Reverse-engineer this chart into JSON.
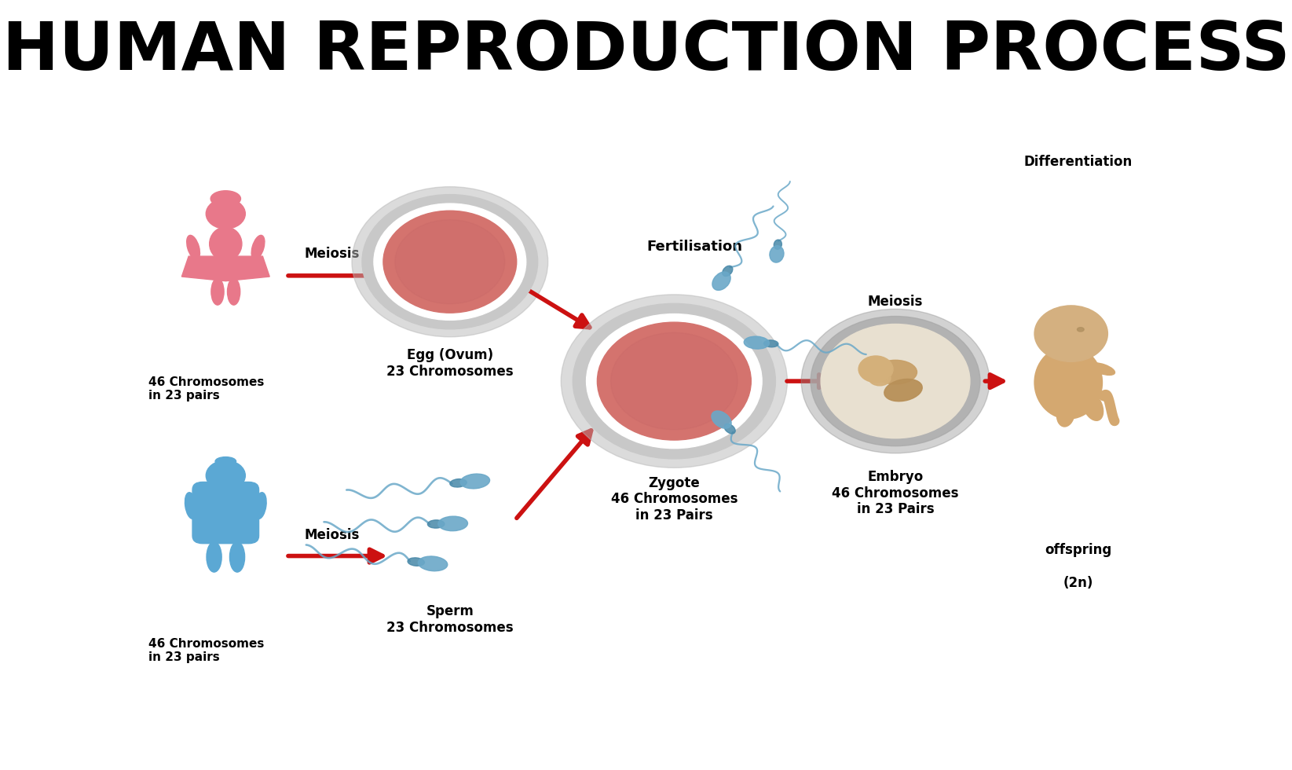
{
  "title": "HUMAN REPRODUCTION PROCESS",
  "title_fontsize": 62,
  "bg_color": "#ffffff",
  "labels": {
    "female_chromo": "46 Chromosomes\nin 23 pairs",
    "male_chromo": "46 Chromosomes\nin 23 pairs",
    "meiosis_top": "Meiosis",
    "meiosis_bot": "Meiosis",
    "egg": "Egg (Ovum)\n23 Chromosomes",
    "sperm": "Sperm\n23 Chromosomes",
    "fertilisation": "Fertilisation",
    "zygote": "Zygote\n46 Chromosomes\nin 23 Pairs",
    "embryo_meiosis": "Meiosis",
    "embryo": "Embryo\n46 Chromosomes\nin 23 Pairs",
    "differentiation": "Differentiation",
    "offspring": "offspring\n\n(2n)"
  },
  "colors": {
    "female_silhouette": "#e8788a",
    "male_silhouette": "#5ba8d4",
    "arrow_red": "#cc1111",
    "egg_outer": "#c8c8c8",
    "egg_inner": "#d4736e",
    "sperm_color": "#6aa8c8",
    "embryo_outer": "#b0b0b0",
    "embryo_inner": "#c8a878",
    "label_color": "#111111",
    "bold_label": "#000000",
    "white": "#ffffff"
  }
}
